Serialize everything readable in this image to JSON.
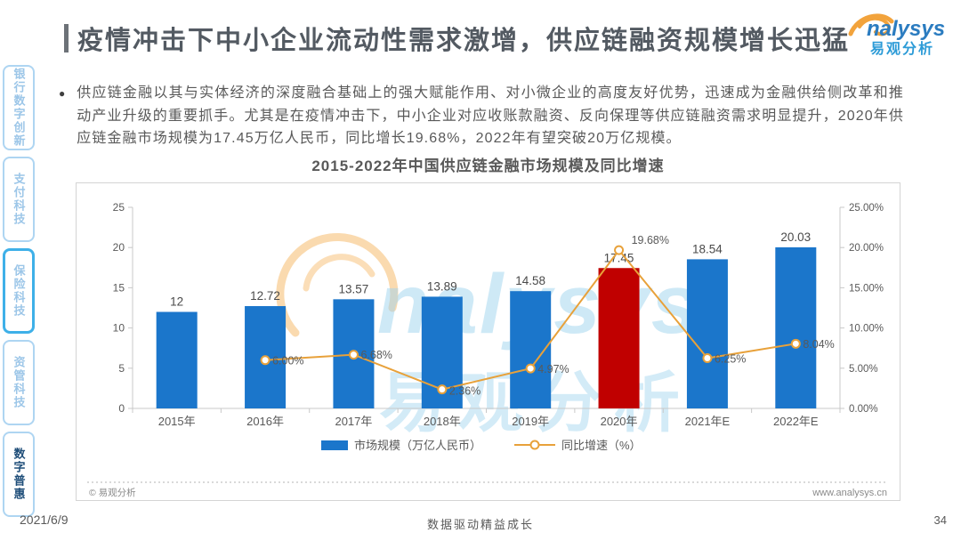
{
  "page": {
    "title": "疫情冲击下中小企业流动性需求激增，供应链融资规模增长迅猛",
    "date": "2021/6/9",
    "slogan": "数据驱动精益成长",
    "page_number": "34"
  },
  "logo": {
    "brand_en": "nalysys",
    "brand_cn": "易观分析"
  },
  "sidebar": {
    "items": [
      {
        "label": "银行数字创新",
        "style": "default"
      },
      {
        "label": "支付科技",
        "style": "default"
      },
      {
        "label": "保险科技",
        "style": "outlined"
      },
      {
        "label": "资管科技",
        "style": "default"
      },
      {
        "label": "数字普惠",
        "style": "active"
      }
    ]
  },
  "intro": {
    "bullet": "●",
    "text": "供应链金融以其与实体经济的深度融合基础上的强大赋能作用、对小微企业的高度友好优势，迅速成为金融供给侧改革和推动产业升级的重要抓手。尤其是在疫情冲击下，中小企业对应收账款融资、反向保理等供应链融资需求明显提升，2020年供应链金融市场规模为17.45万亿人民币，同比增长19.68%，2022年有望突破20万亿规模。"
  },
  "chart_card": {
    "source_note": "© 易观分析",
    "website": "www.analysys.cn"
  },
  "chart_data": {
    "type": "bar+line",
    "title": "2015-2022年中国供应链金融市场规模及同比增速",
    "categories": [
      "2015年",
      "2016年",
      "2017年",
      "2018年",
      "2019年",
      "2020年",
      "2021年E",
      "2022年E"
    ],
    "series": [
      {
        "name": "市场规模（万亿人民币）",
        "type": "bar",
        "axis": "left",
        "values": [
          12,
          12.72,
          13.57,
          13.89,
          14.58,
          17.45,
          18.54,
          20.03
        ],
        "labels": [
          "12",
          "12.72",
          "13.57",
          "13.89",
          "14.58",
          "17.45",
          "18.54",
          "20.03"
        ]
      },
      {
        "name": "同比增速（%）",
        "type": "line",
        "axis": "right",
        "values": [
          null,
          6,
          6.68,
          2.36,
          4.97,
          19.68,
          6.25,
          8.04
        ],
        "labels": [
          "",
          "6.00%",
          "6.68%",
          "2.36%",
          "4.97%",
          "19.68%",
          "6.25%",
          "8.04%"
        ]
      }
    ],
    "left_axis": {
      "min": 0,
      "max": 25,
      "ticks": [
        0,
        5,
        10,
        15,
        20,
        25
      ]
    },
    "right_axis": {
      "min": 0,
      "max": 25,
      "tick_labels": [
        "0.00%",
        "5.00%",
        "10.00%",
        "15.00%",
        "20.00%",
        "25.00%"
      ]
    },
    "highlight_index": 5,
    "colors": {
      "bar": "#1b76cb",
      "bar_highlight": "#c00000",
      "line": "#e8a13a",
      "axis": "#c8c8c8",
      "label": "#595959",
      "watermark": "#9fd4ef",
      "watermark_orange": "#f5ac4e"
    },
    "legend_position": "bottom",
    "grid": false
  }
}
